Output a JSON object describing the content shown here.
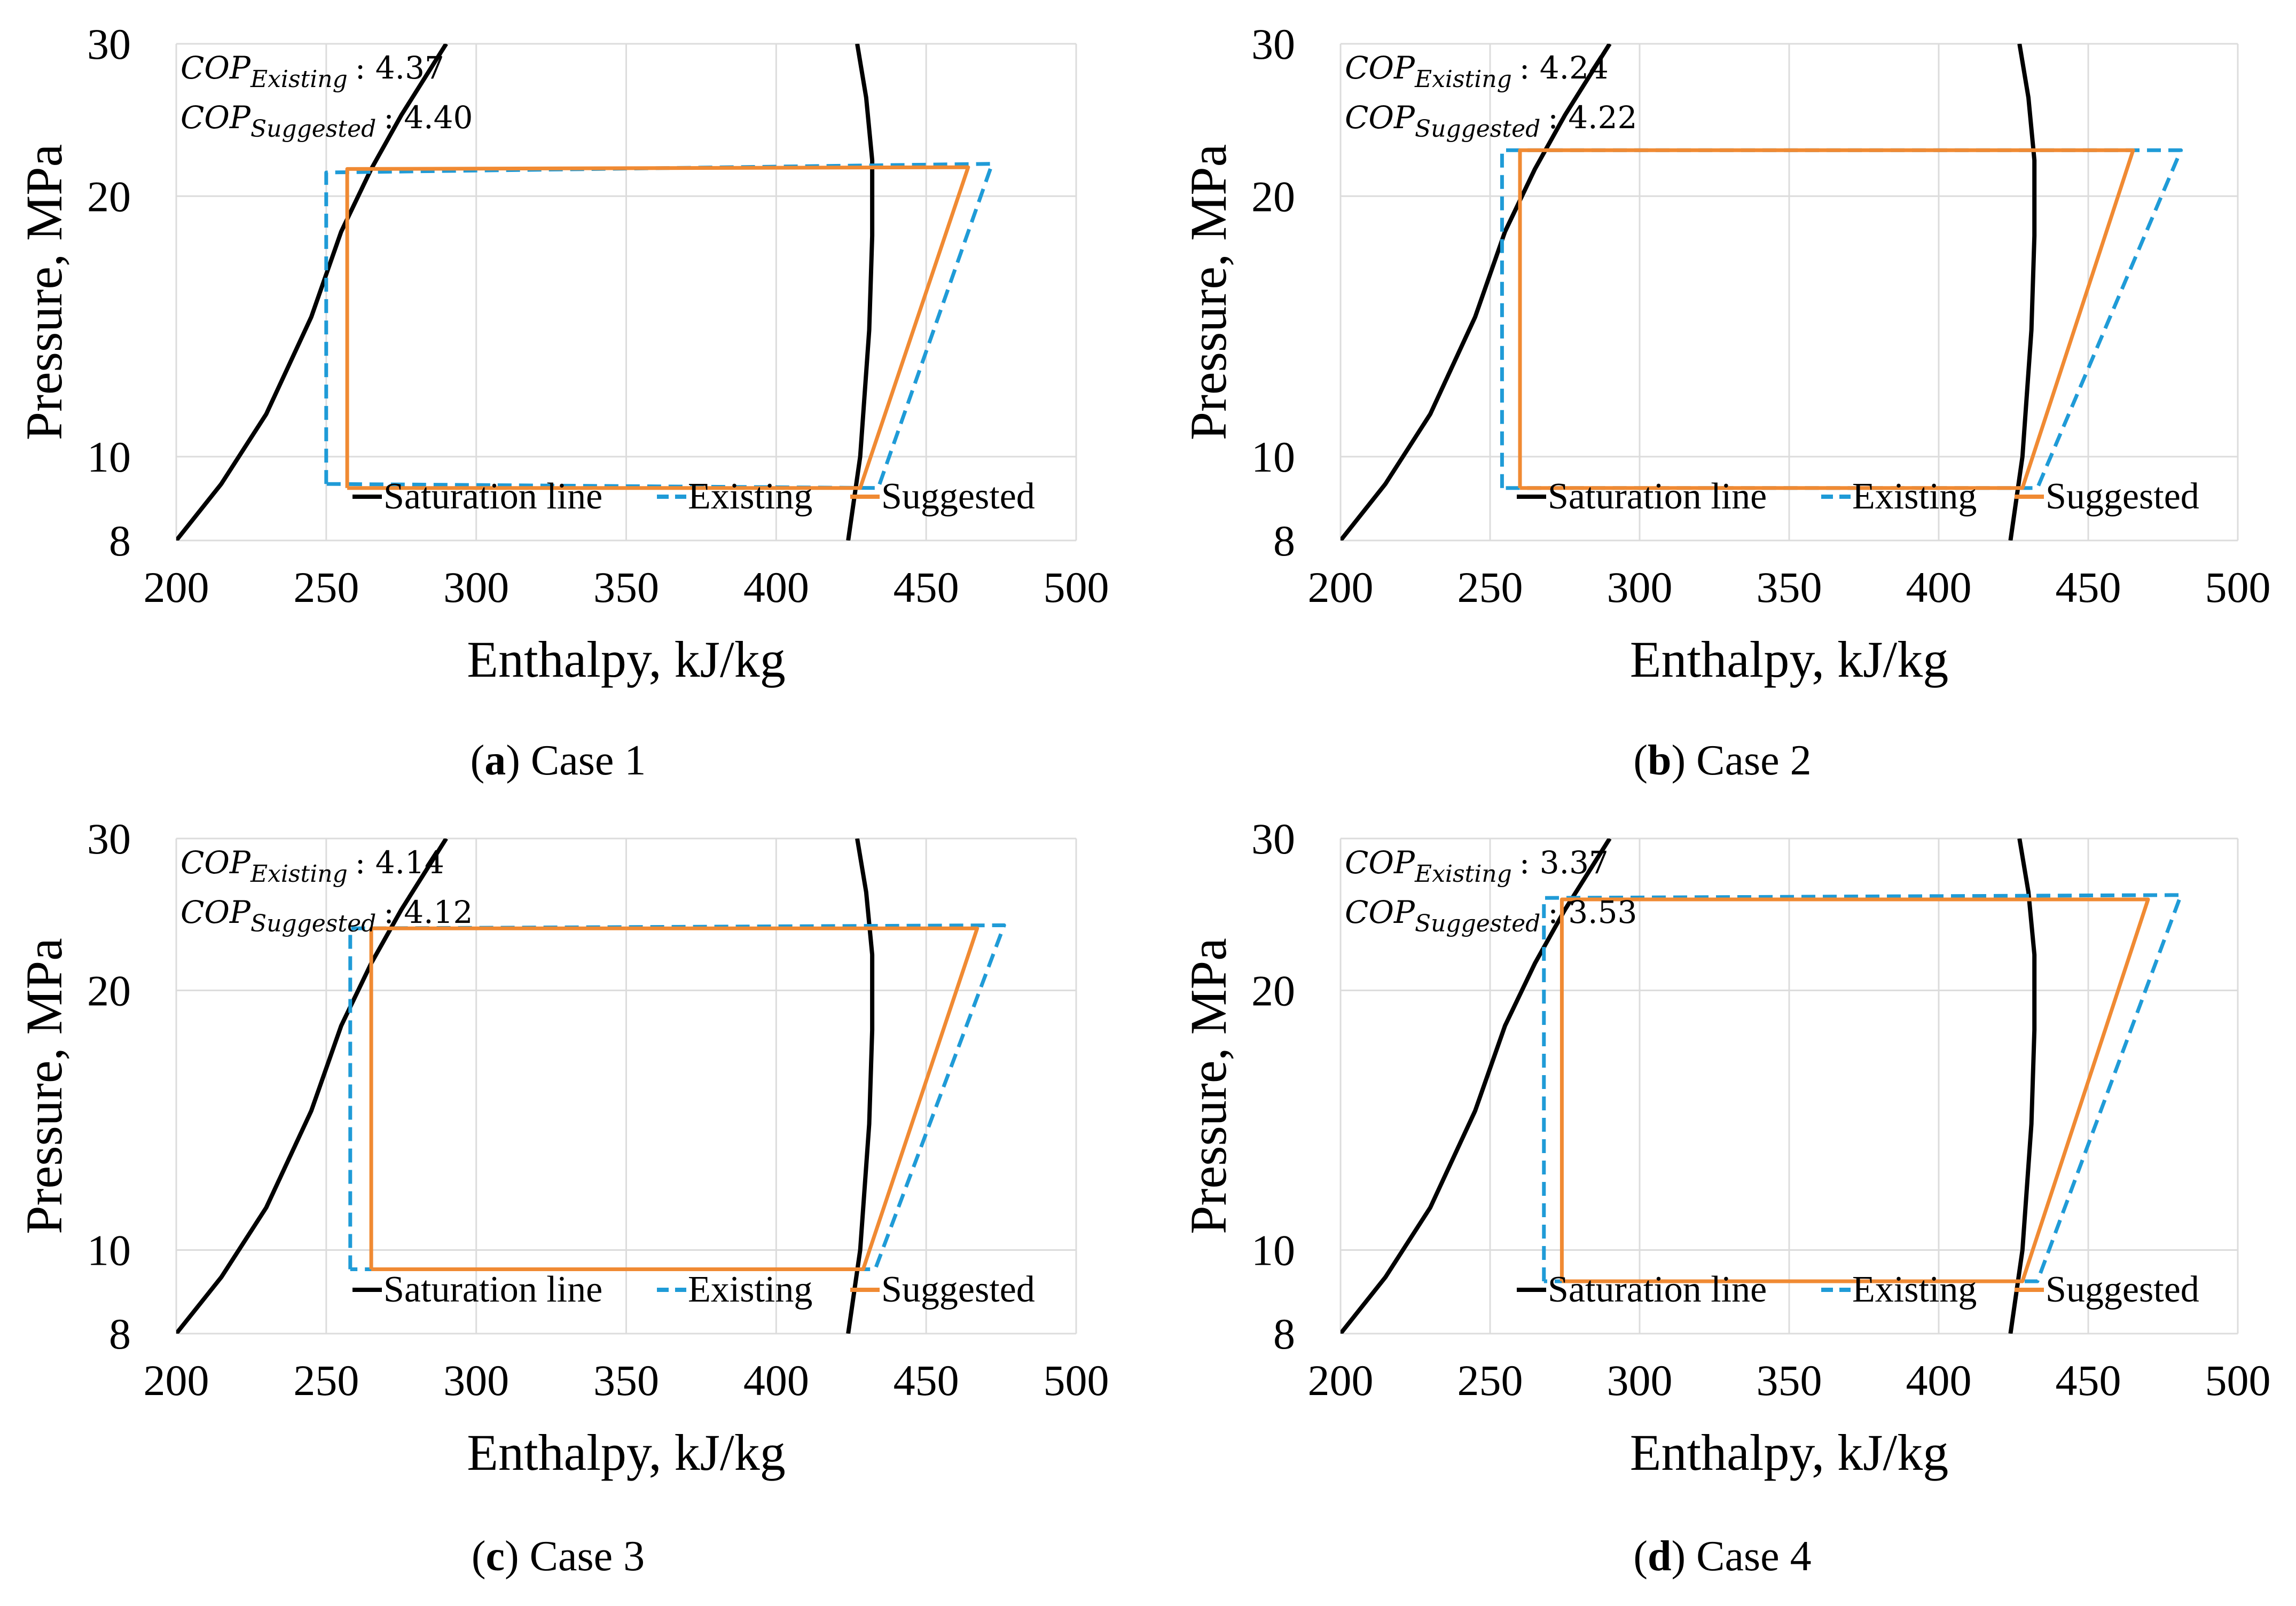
{
  "chart_data": [
    {
      "type": "line",
      "caption_letter": "a",
      "caption_rest": ") Case 1",
      "xlabel": "Enthalpy, kJ/kg",
      "ylabel": "Pressure, MPa",
      "xlim": [
        200,
        500
      ],
      "ylim": [
        8,
        30
      ],
      "yscale": "log",
      "xticks": [
        "200",
        "250",
        "300",
        "350",
        "400",
        "450",
        "500"
      ],
      "yticks": [
        "8",
        "10",
        "20",
        "30"
      ],
      "cop_existing_label": "COP",
      "cop_existing_sub": "Existing",
      "cop_existing_value": ": 4.37",
      "cop_suggested_label": "COP",
      "cop_suggested_sub": "Suggested",
      "cop_suggested_value": ": 4.40",
      "legend": [
        "Saturation line",
        "Existing",
        "Suggested"
      ],
      "series": [
        {
          "name": "Saturation line",
          "color": "#000000",
          "style": "solid",
          "x": [
            200,
            215,
            230,
            245,
            255,
            265,
            275,
            290
          ],
          "y": [
            8,
            9.3,
            11.2,
            14.5,
            18.2,
            21.5,
            24.8,
            30
          ]
        },
        {
          "name": "Saturation line vapor",
          "color": "#000000",
          "style": "solid",
          "x": [
            424,
            428,
            431,
            432,
            432,
            430,
            427
          ],
          "y": [
            8,
            10,
            14,
            18,
            22,
            26,
            30
          ]
        },
        {
          "name": "Existing",
          "color": "#1f9bd7",
          "style": "dashed",
          "x": [
            250,
            250,
            472,
            434,
            250
          ],
          "y": [
            9.3,
            21.3,
            21.8,
            9.2,
            9.3
          ]
        },
        {
          "name": "Suggested",
          "color": "#f08a33",
          "style": "solid",
          "x": [
            257,
            257,
            464,
            428,
            257
          ],
          "y": [
            9.2,
            21.5,
            21.6,
            9.2,
            9.2
          ]
        }
      ]
    },
    {
      "type": "line",
      "caption_letter": "b",
      "caption_rest": ") Case 2",
      "xlabel": "Enthalpy, kJ/kg",
      "ylabel": "Pressure, MPa",
      "xlim": [
        200,
        500
      ],
      "ylim": [
        8,
        30
      ],
      "yscale": "log",
      "xticks": [
        "200",
        "250",
        "300",
        "350",
        "400",
        "450",
        "500"
      ],
      "yticks": [
        "8",
        "10",
        "20",
        "30"
      ],
      "cop_existing_label": "COP",
      "cop_existing_sub": "Existing",
      "cop_existing_value": ": 4.24",
      "cop_suggested_label": "COP",
      "cop_suggested_sub": "Suggested",
      "cop_suggested_value": ": 4.22",
      "legend": [
        "Saturation line",
        "Existing",
        "Suggested"
      ],
      "series": [
        {
          "name": "Saturation line",
          "color": "#000000",
          "style": "solid",
          "x": [
            200,
            215,
            230,
            245,
            255,
            265,
            275,
            290
          ],
          "y": [
            8,
            9.3,
            11.2,
            14.5,
            18.2,
            21.5,
            24.8,
            30
          ]
        },
        {
          "name": "Saturation line vapor",
          "color": "#000000",
          "style": "solid",
          "x": [
            424,
            428,
            431,
            432,
            432,
            430,
            427
          ],
          "y": [
            8,
            10,
            14,
            18,
            22,
            26,
            30
          ]
        },
        {
          "name": "Existing",
          "color": "#1f9bd7",
          "style": "dashed",
          "x": [
            254,
            254,
            481,
            433,
            254
          ],
          "y": [
            9.2,
            22.6,
            22.6,
            9.2,
            9.2
          ]
        },
        {
          "name": "Suggested",
          "color": "#f08a33",
          "style": "solid",
          "x": [
            260,
            260,
            465,
            428,
            260
          ],
          "y": [
            9.2,
            22.6,
            22.6,
            9.2,
            9.2
          ]
        }
      ]
    },
    {
      "type": "line",
      "caption_letter": "c",
      "caption_rest": ") Case 3",
      "xlabel": "Enthalpy, kJ/kg",
      "ylabel": "Pressure, MPa",
      "xlim": [
        200,
        500
      ],
      "ylim": [
        8,
        30
      ],
      "yscale": "log",
      "xticks": [
        "200",
        "250",
        "300",
        "350",
        "400",
        "450",
        "500"
      ],
      "yticks": [
        "8",
        "10",
        "20",
        "30"
      ],
      "cop_existing_label": "COP",
      "cop_existing_sub": "Existing",
      "cop_existing_value": ": 4.14",
      "cop_suggested_label": "COP",
      "cop_suggested_sub": "Suggested",
      "cop_suggested_value": ": 4.12",
      "legend": [
        "Saturation line",
        "Existing",
        "Suggested"
      ],
      "series": [
        {
          "name": "Saturation line",
          "color": "#000000",
          "style": "solid",
          "x": [
            200,
            215,
            230,
            245,
            255,
            265,
            275,
            290
          ],
          "y": [
            8,
            9.3,
            11.2,
            14.5,
            18.2,
            21.5,
            24.8,
            30
          ]
        },
        {
          "name": "Saturation line vapor",
          "color": "#000000",
          "style": "solid",
          "x": [
            424,
            428,
            431,
            432,
            432,
            430,
            427
          ],
          "y": [
            8,
            10,
            14,
            18,
            22,
            26,
            30
          ]
        },
        {
          "name": "Existing",
          "color": "#1f9bd7",
          "style": "dashed",
          "x": [
            258,
            258,
            476,
            433,
            258
          ],
          "y": [
            9.5,
            23.6,
            23.8,
            9.5,
            9.5
          ]
        },
        {
          "name": "Suggested",
          "color": "#f08a33",
          "style": "solid",
          "x": [
            265,
            265,
            467,
            429,
            265
          ],
          "y": [
            9.5,
            23.6,
            23.6,
            9.5,
            9.5
          ]
        }
      ]
    },
    {
      "type": "line",
      "caption_letter": "d",
      "caption_rest": ") Case 4",
      "xlabel": "Enthalpy, kJ/kg",
      "ylabel": "Pressure, MPa",
      "xlim": [
        200,
        500
      ],
      "ylim": [
        8,
        30
      ],
      "yscale": "log",
      "xticks": [
        "200",
        "250",
        "300",
        "350",
        "400",
        "450",
        "500"
      ],
      "yticks": [
        "8",
        "10",
        "20",
        "30"
      ],
      "cop_existing_label": "COP",
      "cop_existing_sub": "Existing",
      "cop_existing_value": ": 3.37",
      "cop_suggested_label": "COP",
      "cop_suggested_sub": "Suggested",
      "cop_suggested_value": ": 3.53",
      "legend": [
        "Saturation line",
        "Existing",
        "Suggested"
      ],
      "series": [
        {
          "name": "Saturation line",
          "color": "#000000",
          "style": "solid",
          "x": [
            200,
            215,
            230,
            245,
            255,
            265,
            275,
            290
          ],
          "y": [
            8,
            9.3,
            11.2,
            14.5,
            18.2,
            21.5,
            24.8,
            30
          ]
        },
        {
          "name": "Saturation line vapor",
          "color": "#000000",
          "style": "solid",
          "x": [
            424,
            428,
            431,
            432,
            432,
            430,
            427
          ],
          "y": [
            8,
            10,
            14,
            18,
            22,
            26,
            30
          ]
        },
        {
          "name": "Existing",
          "color": "#1f9bd7",
          "style": "dashed",
          "x": [
            268,
            268,
            481,
            433,
            268
          ],
          "y": [
            9.2,
            25.6,
            25.8,
            9.2,
            9.2
          ]
        },
        {
          "name": "Suggested",
          "color": "#f08a33",
          "style": "solid",
          "x": [
            274,
            274,
            470,
            428,
            274
          ],
          "y": [
            9.2,
            25.5,
            25.5,
            9.2,
            9.2
          ]
        }
      ]
    }
  ]
}
